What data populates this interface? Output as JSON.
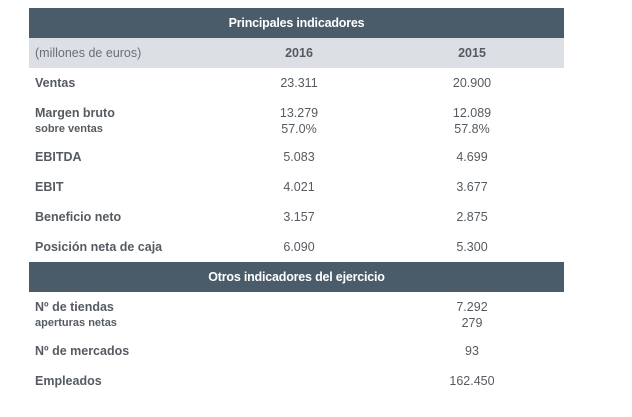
{
  "section1": {
    "title": "Principales indicadores",
    "unit_label": "(millones de euros)",
    "col1": "2016",
    "col2": "2015",
    "rows": [
      {
        "label": "Ventas",
        "v2016": "23.311",
        "v2015": "20.900"
      },
      {
        "label": "Margen bruto",
        "sublabel": "sobre ventas",
        "v2016": "13.279",
        "v2015": "12.089",
        "sub2016": "57.0%",
        "sub2015": "57.8%"
      },
      {
        "label": "EBITDA",
        "v2016": "5.083",
        "v2015": "4.699"
      },
      {
        "label": "EBIT",
        "v2016": "4.021",
        "v2015": "3.677"
      },
      {
        "label": "Beneficio neto",
        "v2016": "3.157",
        "v2015": "2.875"
      },
      {
        "label": "Posición neta de caja",
        "v2016": "6.090",
        "v2015": "5.300"
      }
    ]
  },
  "section2": {
    "title": "Otros indicadores del ejercicio",
    "rows": [
      {
        "label": "Nº de tiendas",
        "sublabel": "aperturas netas",
        "value": "7.292",
        "subvalue": "279"
      },
      {
        "label": "Nº de mercados",
        "value": "93"
      },
      {
        "label": "Empleados",
        "value": "162.450"
      }
    ]
  },
  "colors": {
    "header_bg": "#4a5b69",
    "subheader_bg": "#dcdfe3",
    "text": "#555b61"
  }
}
